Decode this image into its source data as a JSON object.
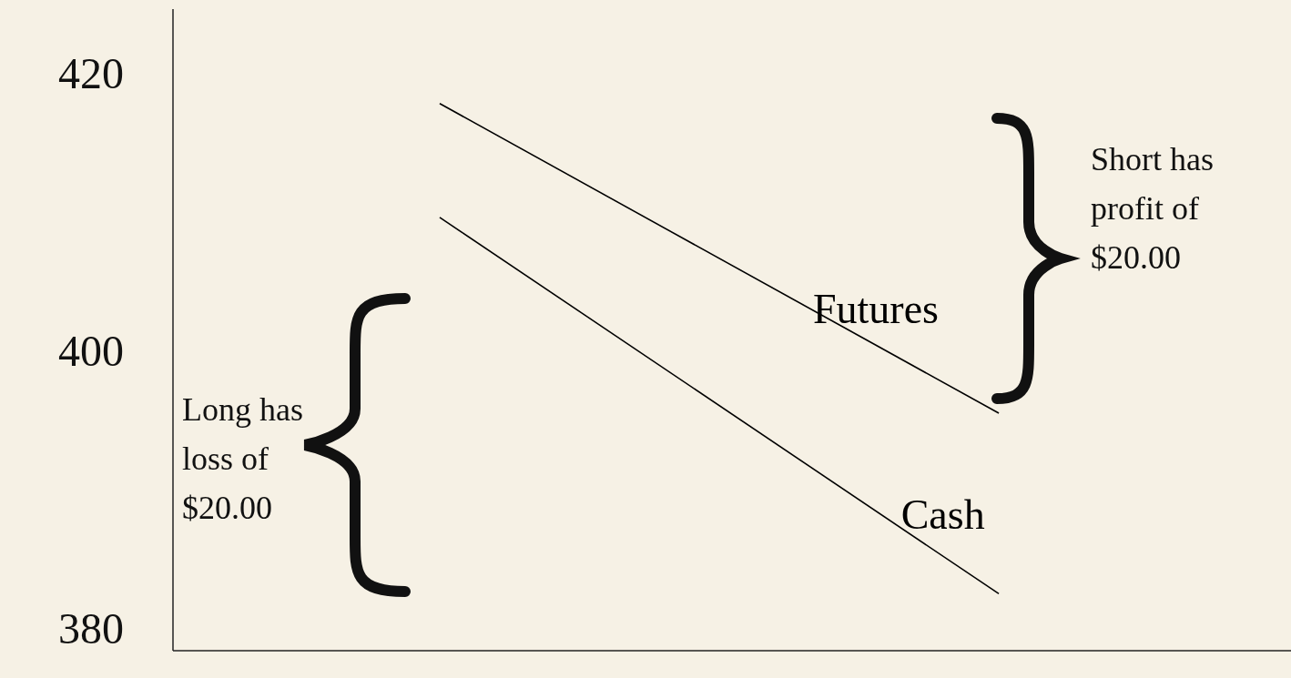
{
  "chart_data": {
    "type": "line",
    "categories": [
      null,
      null
    ],
    "series": [
      {
        "name": "Futures",
        "color": "#000000",
        "values": [
          417.8,
          395.5
        ]
      },
      {
        "name": "Cash",
        "color": "#000000",
        "values": [
          409.6,
          382.5
        ]
      }
    ],
    "ylim": [
      378.4,
      424.6
    ],
    "yticks": [
      380,
      400,
      420
    ],
    "grid": false,
    "legend": false,
    "marker": "none",
    "line_style": "solid",
    "annotations": [
      "Long has loss of $20.00",
      "Short has profit of $20.00"
    ]
  }
}
